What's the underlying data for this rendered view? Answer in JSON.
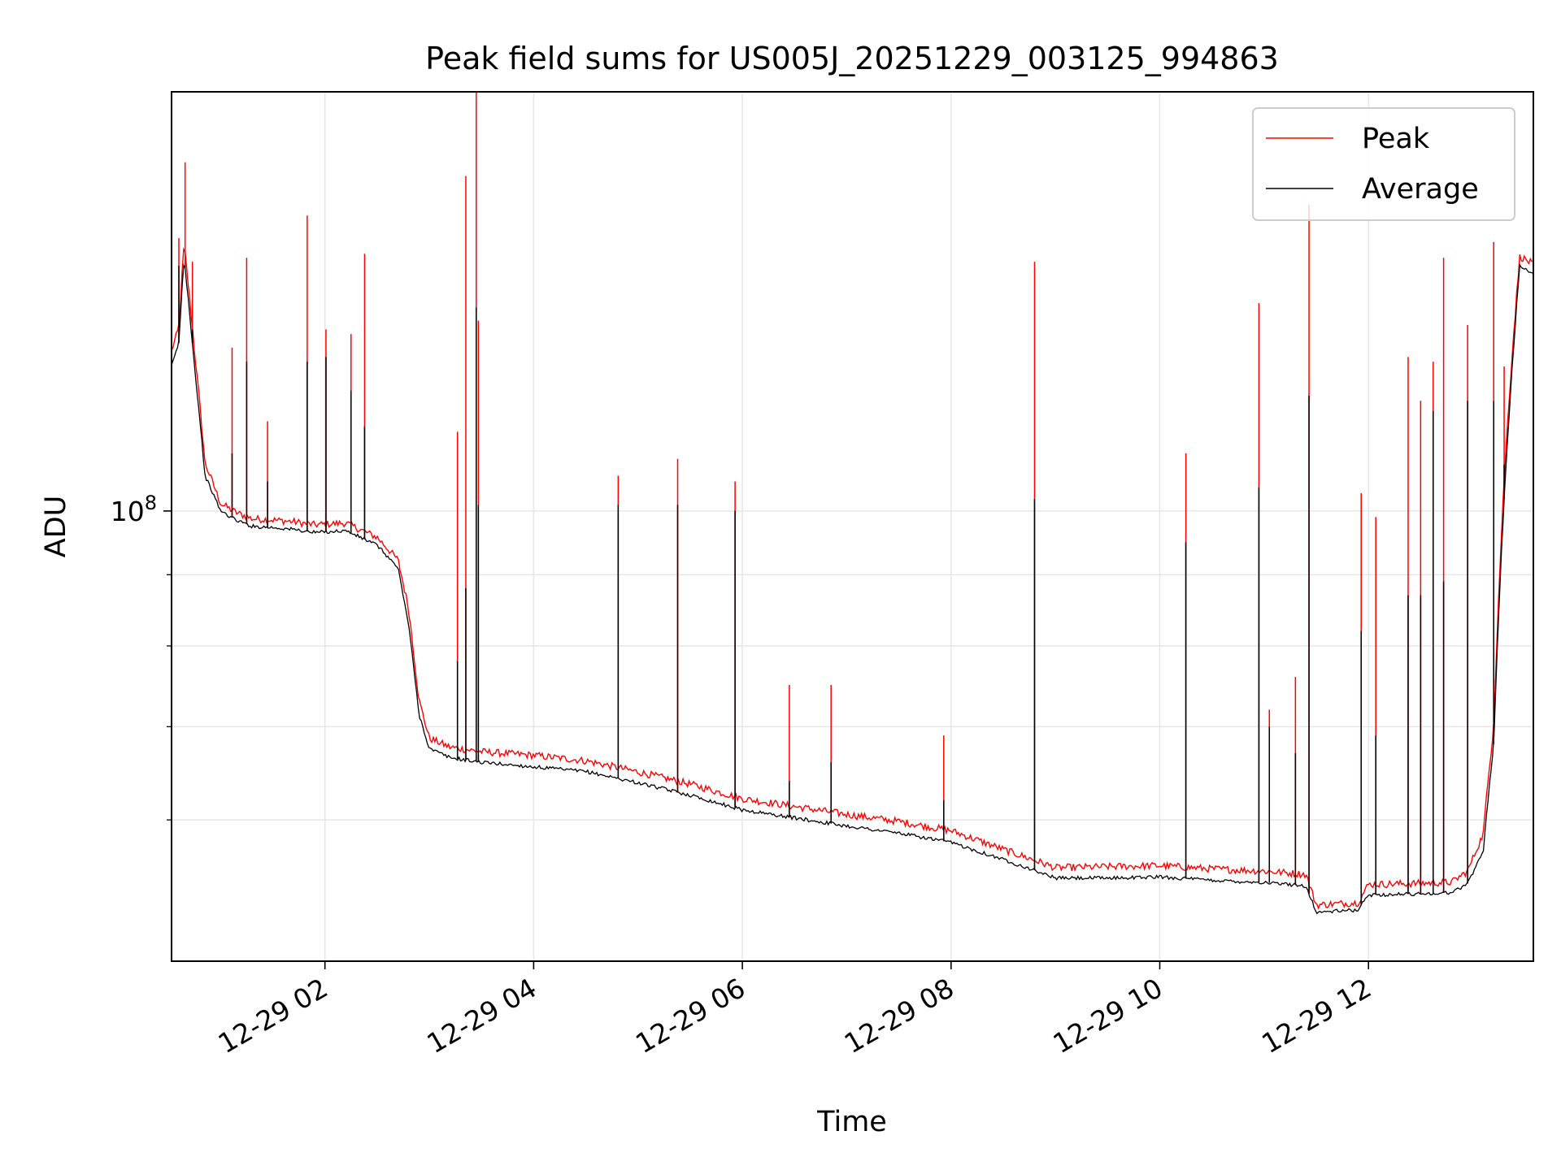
{
  "chart_data": {
    "type": "line",
    "title": "Peak field sums for US005J_20251229_003125_994863",
    "xlabel": "Time",
    "ylabel": "ADU",
    "yscale": "log",
    "xlim": [
      0.53,
      13.58
    ],
    "ylim": [
      47500000,
      200000000
    ],
    "x_ticks": [
      {
        "value": 2,
        "label": "12-29 02"
      },
      {
        "value": 4,
        "label": "12-29 04"
      },
      {
        "value": 6,
        "label": "12-29 06"
      },
      {
        "value": 8,
        "label": "12-29 08"
      },
      {
        "value": 10,
        "label": "12-29 10"
      },
      {
        "value": 12,
        "label": "12-29 12"
      }
    ],
    "y_major_ticks": [
      {
        "value": 100000000,
        "base": "10",
        "exp": "8"
      }
    ],
    "y_minor_ticks": [
      60000000,
      70000000,
      80000000,
      90000000
    ],
    "grid": true,
    "legend_position": "top-right",
    "colors": {
      "peak": "#ff0000",
      "average": "#000000",
      "grid": "#e6e6e6"
    },
    "series": [
      {
        "name": "Peak",
        "color": "#ff0000",
        "x": [
          0.53,
          0.6,
          0.65,
          0.75,
          0.85,
          1.0,
          1.15,
          1.3,
          1.5,
          1.7,
          1.9,
          2.2,
          2.5,
          2.7,
          2.8,
          2.9,
          3.0,
          3.2,
          3.5,
          4.0,
          4.5,
          5.0,
          5.5,
          6.0,
          6.5,
          7.0,
          7.5,
          8.0,
          8.5,
          8.8,
          9.0,
          9.5,
          10.0,
          10.5,
          11.0,
          11.4,
          11.5,
          11.9,
          12.0,
          12.5,
          12.8,
          12.95,
          13.1,
          13.2,
          13.3,
          13.45,
          13.58
        ],
        "y": [
          130000000,
          135000000,
          155000000,
          130000000,
          108000000,
          101000000,
          99500000,
          98500000,
          98300000,
          98000000,
          97500000,
          97800000,
          95500000,
          92000000,
          85000000,
          73000000,
          68500000,
          67500000,
          67000000,
          66600000,
          66000000,
          64800000,
          63500000,
          62000000,
          61200000,
          60400000,
          59700000,
          58800000,
          57000000,
          56000000,
          55300000,
          55400000,
          55500000,
          55200000,
          55000000,
          54700000,
          52000000,
          52200000,
          53800000,
          53900000,
          54000000,
          55000000,
          58500000,
          70000000,
          105000000,
          152000000,
          150000000
        ]
      },
      {
        "name": "Average",
        "color": "#000000",
        "x": [
          0.53,
          0.6,
          0.65,
          0.75,
          0.85,
          1.0,
          1.15,
          1.3,
          1.5,
          1.7,
          1.9,
          2.2,
          2.5,
          2.7,
          2.8,
          2.9,
          3.0,
          3.2,
          3.5,
          4.0,
          4.5,
          5.0,
          5.5,
          6.0,
          6.5,
          7.0,
          7.5,
          8.0,
          8.5,
          8.8,
          9.0,
          9.5,
          10.0,
          10.5,
          11.0,
          11.4,
          11.5,
          11.9,
          12.0,
          12.5,
          12.8,
          12.95,
          13.1,
          13.2,
          13.3,
          13.45,
          13.58
        ],
        "y": [
          127000000,
          132000000,
          152000000,
          127000000,
          106000000,
          100000000,
          98500000,
          97500000,
          97300000,
          97000000,
          96500000,
          96800000,
          94500000,
          91000000,
          83000000,
          71500000,
          67500000,
          66500000,
          66000000,
          65500000,
          65000000,
          63800000,
          62500000,
          61000000,
          60200000,
          59400000,
          58700000,
          57800000,
          56200000,
          55200000,
          54500000,
          54500000,
          54600000,
          54300000,
          54100000,
          53800000,
          51500000,
          51700000,
          53000000,
          53100000,
          53200000,
          54000000,
          57000000,
          68000000,
          102000000,
          150000000,
          148000000
        ]
      }
    ],
    "spikes": [
      {
        "x": 0.6,
        "peak": 157000000,
        "avg": 150000000
      },
      {
        "x": 0.66,
        "peak": 178000000,
        "avg": 150000000
      },
      {
        "x": 0.73,
        "peak": 151000000,
        "avg": 135000000
      },
      {
        "x": 1.11,
        "peak": 131000000,
        "avg": 110000000
      },
      {
        "x": 1.25,
        "peak": 152000000,
        "avg": 128000000
      },
      {
        "x": 1.45,
        "peak": 116000000,
        "avg": 105000000
      },
      {
        "x": 1.83,
        "peak": 163000000,
        "avg": 128000000
      },
      {
        "x": 2.01,
        "peak": 135000000,
        "avg": 129000000
      },
      {
        "x": 2.25,
        "peak": 134000000,
        "avg": 122000000
      },
      {
        "x": 2.38,
        "peak": 153000000,
        "avg": 115000000
      },
      {
        "x": 3.27,
        "peak": 114000000,
        "avg": 78000000
      },
      {
        "x": 3.35,
        "peak": 174000000,
        "avg": 88000000
      },
      {
        "x": 3.45,
        "peak": 200000000,
        "avg": 140000000
      },
      {
        "x": 3.47,
        "peak": 137000000,
        "avg": 101000000
      },
      {
        "x": 4.81,
        "peak": 106000000,
        "avg": 101000000
      },
      {
        "x": 5.38,
        "peak": 109000000,
        "avg": 101000000
      },
      {
        "x": 5.93,
        "peak": 105000000,
        "avg": 100000000
      },
      {
        "x": 6.45,
        "peak": 75000000,
        "avg": 64000000
      },
      {
        "x": 6.85,
        "peak": 75000000,
        "avg": 66000000
      },
      {
        "x": 7.93,
        "peak": 69000000,
        "avg": 62000000
      },
      {
        "x": 8.8,
        "peak": 151000000,
        "avg": 102000000
      },
      {
        "x": 10.25,
        "peak": 110000000,
        "avg": 95000000
      },
      {
        "x": 10.95,
        "peak": 141000000,
        "avg": 104000000
      },
      {
        "x": 11.05,
        "peak": 72000000,
        "avg": 70000000
      },
      {
        "x": 11.3,
        "peak": 76000000,
        "avg": 67000000
      },
      {
        "x": 11.43,
        "peak": 166000000,
        "avg": 121000000
      },
      {
        "x": 11.93,
        "peak": 103000000,
        "avg": 82000000
      },
      {
        "x": 12.07,
        "peak": 99000000,
        "avg": 69000000
      },
      {
        "x": 12.38,
        "peak": 129000000,
        "avg": 87000000
      },
      {
        "x": 12.5,
        "peak": 120000000,
        "avg": 87000000
      },
      {
        "x": 12.62,
        "peak": 128000000,
        "avg": 118000000
      },
      {
        "x": 12.72,
        "peak": 152000000,
        "avg": 89000000
      },
      {
        "x": 12.95,
        "peak": 136000000,
        "avg": 120000000
      },
      {
        "x": 13.2,
        "peak": 156000000,
        "avg": 120000000
      },
      {
        "x": 13.3,
        "peak": 127000000,
        "avg": 108000000
      }
    ]
  }
}
